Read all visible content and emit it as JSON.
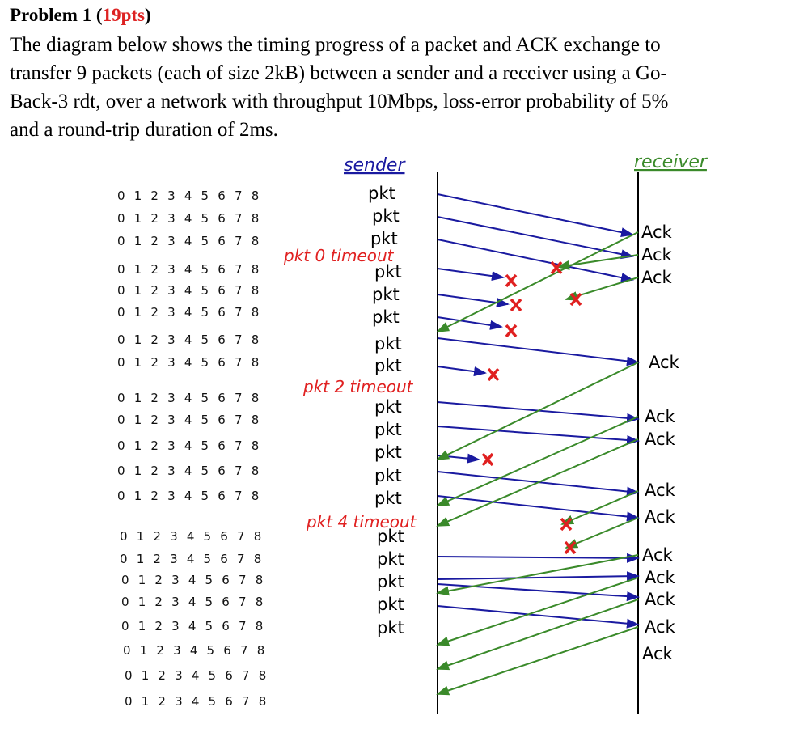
{
  "problem": {
    "label": "Problem 1 (",
    "points": "19pts",
    "close": ")"
  },
  "description": [
    "The diagram below shows the timing progress of a packet and ACK exchange to",
    "transfer 9 packets (each of size 2kB) between a sender and a receiver using a Go-",
    "Back-3 rdt, over a network with throughput 10Mbps, loss-error probability of 5%",
    "and a round-trip duration of 2ms."
  ],
  "diagram": {
    "sender": "sender",
    "receiver": "receiver",
    "sequence_rows": [
      "0 1 2 3 4 5 6 7 8",
      "0 1 2 3 4 5 6 7 8",
      "0 1 2 3 4 5 6 7 8",
      "0 1 2 3 4 5 6 7 8",
      "0 1 2 3 4 5 6 7 8",
      "0 1 2 3 4 5 6 7 8",
      "0 1 2 3 4 5 6 7 8",
      "0 1 2 3 4 5 6 7 8",
      "0 1 2 3 4 5 6 7 8",
      "0 1 2 3 4 5 6 7 8",
      "0 1 2 3 4 5 6 7 8",
      "0 1 2 3 4 5 6 7 8",
      "0 1 2 3 4 5 6 7 8",
      "0 1 2 3 4 5 6 7 8",
      "0 1 2 3 4 5 6 7 8",
      "0 1 2 3 4 5 6 7 8",
      "0 1 2 3 4 5 6 7 8",
      "0 1 2 3 4 5 6 7 8",
      "0 1 2 3 4 5 6 7 8",
      "0 1 2 3 4 5 6 7 8",
      "0 1 2 3 4 5 6 7 8"
    ],
    "packets": [
      "pkt",
      "pkt",
      "pkt",
      "pkt",
      "pkt",
      "pkt",
      "pkt",
      "pkt",
      "pkt",
      "pkt",
      "pkt",
      "pkt",
      "pkt",
      "pkt",
      "pkt",
      "pkt",
      "pkt",
      "pkt"
    ],
    "timeouts": [
      "pkt 0 timeout",
      "pkt 2 timeout",
      "pkt 4 timeout"
    ],
    "acks": [
      "Ack",
      "Ack",
      "Ack",
      "Ack",
      "Ack",
      "Ack",
      "Ack",
      "Ack",
      "Ack",
      "Ack",
      "Ack",
      "Ack",
      "Ack"
    ]
  }
}
